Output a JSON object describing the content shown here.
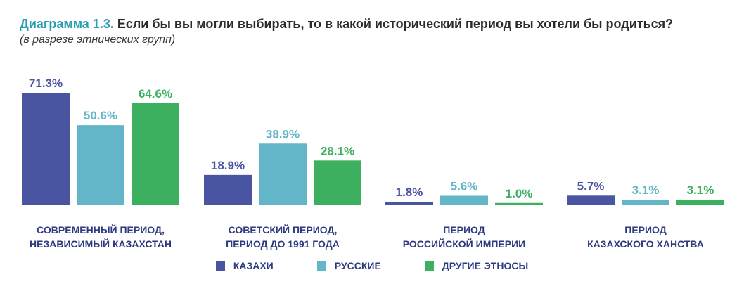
{
  "title_prefix": "Диаграмма 1.3.",
  "title_text": "Если бы вы могли выбирать, то в какой исторический период вы хотели бы родиться?",
  "subtitle": "(в разрезе этнических групп)",
  "chart_data": {
    "type": "bar",
    "title": "Диаграмма 1.3. Если бы вы могли выбирать, то в какой исторический период вы хотели бы родиться?",
    "subtitle": "(в разрезе этнических групп)",
    "categories": [
      [
        "СОВРЕМЕННЫЙ ПЕРИОД,",
        "НЕЗАВИСИМЫЙ КАЗАХСТАН"
      ],
      [
        "СОВЕТСКИЙ ПЕРИОД,",
        "ПЕРИОД ДО 1991 ГОДА"
      ],
      [
        "ПЕРИОД",
        "РОССИЙСКОЙ ИМПЕРИИ"
      ],
      [
        "ПЕРИОД",
        "КАЗАХСКОГО ХАНСТВА"
      ]
    ],
    "series": [
      {
        "name": "КАЗАХИ",
        "color": "#4a55a2",
        "values": [
          71.3,
          18.9,
          1.8,
          5.7
        ]
      },
      {
        "name": "РУССКИЕ",
        "color": "#63b5c8",
        "values": [
          50.6,
          38.9,
          5.6,
          3.1
        ]
      },
      {
        "name": "ДРУГИЕ ЭТНОСЫ",
        "color": "#3db060",
        "values": [
          64.6,
          28.1,
          1.0,
          3.1
        ]
      }
    ],
    "value_suffix": "%",
    "ylim": [
      0,
      71.3
    ],
    "grid": false,
    "legend_position": "bottom",
    "xlabel": "",
    "ylabel": ""
  }
}
